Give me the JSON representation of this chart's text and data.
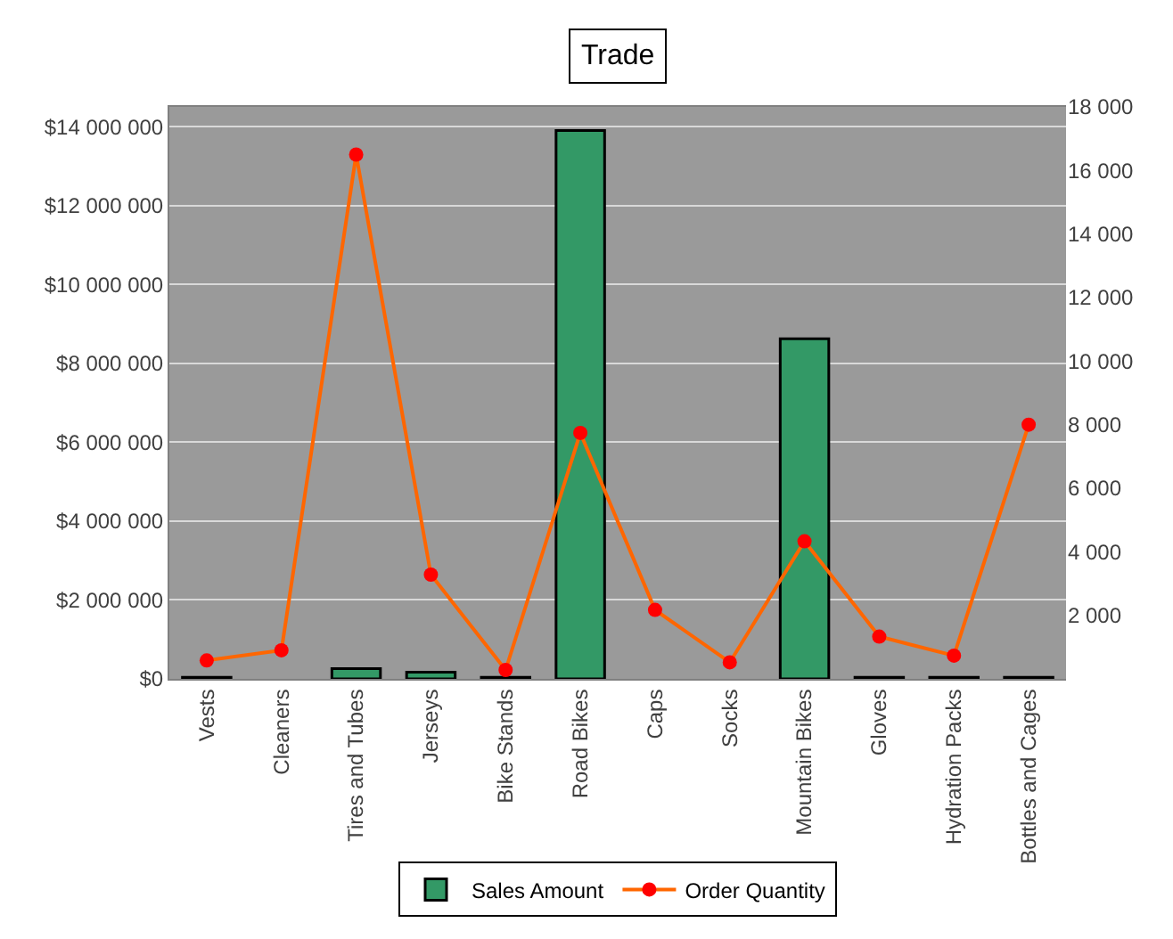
{
  "chart_data": {
    "type": "bar",
    "title": "Trade",
    "categories": [
      "Vests",
      "Cleaners",
      "Tires and Tubes",
      "Jerseys",
      "Bike Stands",
      "Road Bikes",
      "Caps",
      "Socks",
      "Mountain Bikes",
      "Gloves",
      "Hydration Packs",
      "Bottles and Cages"
    ],
    "series": [
      {
        "name": "Sales Amount",
        "color": "#339966",
        "values": [
          40000,
          0,
          260000,
          170000,
          40000,
          13900000,
          0,
          0,
          8620000,
          40000,
          40000,
          40000
        ]
      },
      {
        "name": "Order Quantity",
        "type": "line",
        "axis": "y2",
        "color": "#ff6600",
        "marker": "circle",
        "values": [
          580,
          900,
          16500,
          3280,
          280,
          7740,
          2170,
          520,
          4330,
          1330,
          730,
          8000
        ]
      }
    ],
    "ylim": [
      0,
      14500000
    ],
    "yticks": [
      {
        "value": 0,
        "label": "$0"
      },
      {
        "value": 2000000,
        "label": "$2 000 000"
      },
      {
        "value": 4000000,
        "label": "$4 000 000"
      },
      {
        "value": 6000000,
        "label": "$6 000 000"
      },
      {
        "value": 8000000,
        "label": "$8 000 000"
      },
      {
        "value": 10000000,
        "label": "$10 000 000"
      },
      {
        "value": 12000000,
        "label": "$12 000 000"
      },
      {
        "value": 14000000,
        "label": "$14 000 000"
      }
    ],
    "y2lim": [
      0,
      18000
    ],
    "y2ticks": [
      {
        "value": 2000,
        "label": "2 000"
      },
      {
        "value": 4000,
        "label": "4 000"
      },
      {
        "value": 6000,
        "label": "6 000"
      },
      {
        "value": 8000,
        "label": "8 000"
      },
      {
        "value": 10000,
        "label": "10 000"
      },
      {
        "value": 12000,
        "label": "12 000"
      },
      {
        "value": 14000,
        "label": "14 000"
      },
      {
        "value": 16000,
        "label": "16 000"
      },
      {
        "value": 18000,
        "label": "18 000"
      }
    ],
    "grid": "y",
    "legend": "bottom"
  }
}
